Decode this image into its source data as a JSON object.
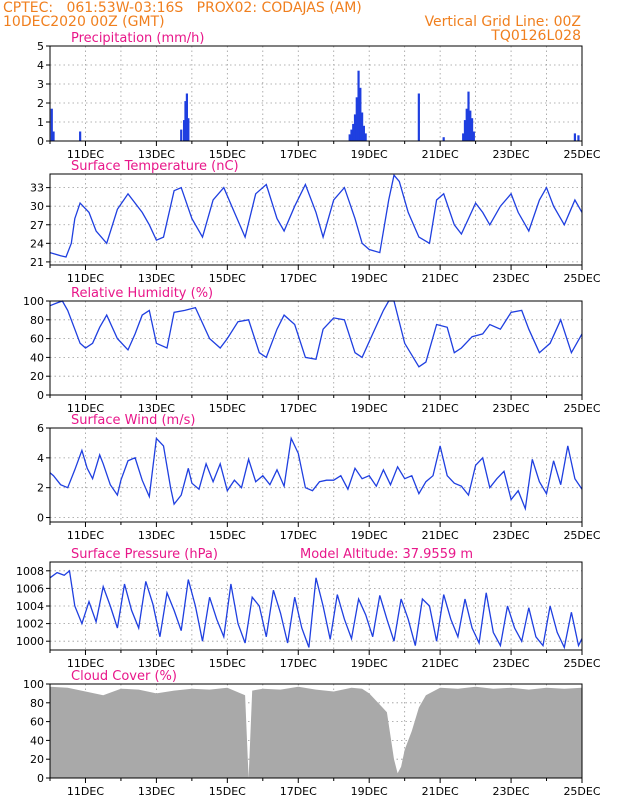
{
  "header": {
    "left_line1": "CPTEC:   061:53W-03:16S   PROX02: CODAJAS (AM)",
    "left_line2": "10DEC2020 00Z (GMT)",
    "right_line2": "Vertical Grid Line: 00Z",
    "right_line3": "TQ0126L028"
  },
  "colors": {
    "header": "#f07f1e",
    "title": "#e8178a",
    "line": "#1f3fe0",
    "cloud": "#a9a9a9",
    "grid": "#9a9a9a"
  },
  "x_axis": {
    "labels": [
      "11DEC",
      "13DEC",
      "15DEC",
      "17DEC",
      "19DEC",
      "21DEC",
      "23DEC",
      "25DEC"
    ],
    "label_days": [
      1,
      3,
      5,
      7,
      9,
      11,
      13,
      15
    ],
    "range": [
      0,
      15
    ]
  },
  "chart_data": [
    {
      "type": "bar",
      "title": "Precipitation (mm/h)",
      "ylim": [
        0,
        5
      ],
      "yticks": [
        0,
        1,
        2,
        3,
        4,
        5
      ],
      "bars": [
        [
          0.05,
          1.7
        ],
        [
          0.1,
          0.5
        ],
        [
          0.85,
          0.5
        ],
        [
          3.7,
          0.6
        ],
        [
          3.78,
          1.1
        ],
        [
          3.82,
          2.1
        ],
        [
          3.86,
          2.5
        ],
        [
          3.9,
          1.2
        ],
        [
          8.45,
          0.35
        ],
        [
          8.5,
          0.6
        ],
        [
          8.55,
          0.9
        ],
        [
          8.6,
          1.4
        ],
        [
          8.65,
          2.3
        ],
        [
          8.7,
          3.7
        ],
        [
          8.75,
          2.8
        ],
        [
          8.8,
          1.5
        ],
        [
          8.85,
          0.8
        ],
        [
          8.9,
          0.4
        ],
        [
          10.4,
          2.5
        ],
        [
          11.1,
          0.2
        ],
        [
          11.65,
          0.4
        ],
        [
          11.7,
          1.1
        ],
        [
          11.75,
          1.7
        ],
        [
          11.8,
          2.6
        ],
        [
          11.85,
          1.6
        ],
        [
          11.9,
          1.2
        ],
        [
          11.95,
          0.5
        ],
        [
          14.8,
          0.4
        ],
        [
          14.9,
          0.3
        ]
      ]
    },
    {
      "type": "line",
      "title": "Surface Temperature (nC)",
      "ylim": [
        20.5,
        35.2
      ],
      "yticks": [
        21,
        24,
        27,
        30,
        33
      ],
      "x": [
        0,
        0.3,
        0.45,
        0.6,
        0.7,
        0.85,
        1.1,
        1.3,
        1.6,
        1.9,
        2.2,
        2.6,
        2.8,
        3.0,
        3.2,
        3.5,
        3.7,
        4.0,
        4.3,
        4.6,
        4.9,
        5.2,
        5.5,
        5.8,
        6.1,
        6.4,
        6.6,
        6.9,
        7.2,
        7.5,
        7.7,
        8.0,
        8.3,
        8.6,
        8.8,
        9.0,
        9.3,
        9.55,
        9.7,
        9.85,
        10.1,
        10.4,
        10.7,
        10.9,
        11.1,
        11.4,
        11.6,
        11.8,
        12.0,
        12.2,
        12.4,
        12.7,
        13.0,
        13.2,
        13.5,
        13.8,
        14.0,
        14.2,
        14.5,
        14.8,
        15.0
      ],
      "y": [
        22.5,
        22,
        21.8,
        24,
        28,
        30.5,
        29,
        26,
        24,
        29.5,
        32,
        29,
        27,
        24.5,
        25,
        32.5,
        33,
        28,
        25,
        31,
        33,
        29,
        25,
        32,
        33.5,
        28,
        26,
        30,
        33.5,
        29,
        25,
        31,
        33,
        28,
        24,
        23,
        22.5,
        31,
        35,
        34,
        29,
        25,
        24,
        31,
        32,
        27,
        25.5,
        28,
        30.5,
        29,
        27,
        30,
        32,
        29,
        26,
        31,
        33,
        30,
        27,
        31,
        29
      ]
    },
    {
      "type": "line",
      "title": "Relative Humidity (%)",
      "ylim": [
        0,
        100
      ],
      "yticks": [
        0,
        20,
        40,
        60,
        80,
        100
      ],
      "x": [
        0,
        0.2,
        0.35,
        0.5,
        0.7,
        0.85,
        1.0,
        1.2,
        1.4,
        1.6,
        1.9,
        2.2,
        2.4,
        2.6,
        2.8,
        3.0,
        3.3,
        3.5,
        3.8,
        4.1,
        4.5,
        4.8,
        5.0,
        5.3,
        5.6,
        5.9,
        6.1,
        6.4,
        6.6,
        6.9,
        7.2,
        7.5,
        7.7,
        8.0,
        8.3,
        8.6,
        8.8,
        9.1,
        9.4,
        9.55,
        9.7,
        10.0,
        10.4,
        10.6,
        10.9,
        11.2,
        11.4,
        11.6,
        11.9,
        12.2,
        12.4,
        12.7,
        13.0,
        13.3,
        13.5,
        13.8,
        14.1,
        14.4,
        14.7,
        15.0
      ],
      "y": [
        95,
        98,
        100,
        90,
        70,
        55,
        50,
        55,
        72,
        85,
        60,
        48,
        65,
        85,
        90,
        55,
        50,
        88,
        90,
        93,
        60,
        50,
        60,
        78,
        80,
        45,
        40,
        70,
        85,
        75,
        40,
        38,
        70,
        82,
        80,
        45,
        40,
        65,
        90,
        100,
        100,
        55,
        30,
        35,
        75,
        72,
        45,
        50,
        62,
        65,
        75,
        70,
        88,
        90,
        70,
        45,
        55,
        80,
        45,
        65
      ]
    },
    {
      "type": "line",
      "title": "Surface Wind (m/s)",
      "ylim": [
        -0.3,
        6
      ],
      "yticks": [
        0,
        2,
        4,
        6
      ],
      "x": [
        0,
        0.1,
        0.3,
        0.5,
        0.7,
        0.9,
        1.05,
        1.2,
        1.4,
        1.5,
        1.7,
        1.9,
        2.0,
        2.2,
        2.4,
        2.6,
        2.8,
        3.0,
        3.2,
        3.4,
        3.5,
        3.7,
        3.9,
        4.0,
        4.2,
        4.4,
        4.6,
        4.8,
        5.0,
        5.2,
        5.4,
        5.6,
        5.8,
        6.0,
        6.2,
        6.4,
        6.6,
        6.8,
        7.0,
        7.2,
        7.4,
        7.6,
        7.8,
        8.0,
        8.2,
        8.4,
        8.6,
        8.8,
        9.0,
        9.2,
        9.4,
        9.6,
        9.8,
        10.0,
        10.2,
        10.4,
        10.6,
        10.8,
        11.0,
        11.2,
        11.4,
        11.6,
        11.8,
        12.0,
        12.2,
        12.4,
        12.6,
        12.8,
        13.0,
        13.2,
        13.4,
        13.6,
        13.8,
        14.0,
        14.2,
        14.4,
        14.6,
        14.8,
        15.0
      ],
      "y": [
        3,
        2.8,
        2.2,
        2,
        3.2,
        4.5,
        3.3,
        2.6,
        4.2,
        3.6,
        2.2,
        1.5,
        2.5,
        3.8,
        4,
        2.5,
        1.4,
        5.3,
        4.8,
        2,
        0.9,
        1.5,
        3.3,
        2.3,
        1.9,
        3.6,
        2.4,
        3.6,
        1.8,
        2.5,
        2,
        3.9,
        2.4,
        2.8,
        2.2,
        3.2,
        2.1,
        5.3,
        4.3,
        2,
        1.8,
        2.4,
        2.5,
        2.5,
        2.8,
        1.9,
        3.3,
        2.6,
        2.8,
        2.1,
        3.2,
        2.2,
        3.4,
        2.6,
        2.8,
        1.6,
        2.4,
        2.8,
        4.8,
        2.8,
        2.3,
        2.1,
        1.5,
        3.5,
        4,
        2,
        2.6,
        3.1,
        1.2,
        1.8,
        0.6,
        3.9,
        2.4,
        1.6,
        3.8,
        2.2,
        4.8,
        2.6,
        1.9
      ]
    },
    {
      "type": "line",
      "title": "Surface Pressure (hPa)",
      "annotation": "Model Altitude: 37.9559  m",
      "ylim": [
        999,
        1009
      ],
      "yticks": [
        1000,
        1002,
        1004,
        1006,
        1008
      ],
      "x": [
        0,
        0.2,
        0.4,
        0.55,
        0.7,
        0.9,
        1.1,
        1.3,
        1.5,
        1.7,
        1.9,
        2.1,
        2.3,
        2.5,
        2.7,
        2.9,
        3.1,
        3.3,
        3.5,
        3.7,
        3.9,
        4.1,
        4.3,
        4.5,
        4.7,
        4.9,
        5.1,
        5.3,
        5.5,
        5.7,
        5.9,
        6.1,
        6.3,
        6.5,
        6.7,
        6.9,
        7.1,
        7.3,
        7.5,
        7.7,
        7.9,
        8.1,
        8.3,
        8.5,
        8.7,
        8.9,
        9.1,
        9.3,
        9.5,
        9.7,
        9.9,
        10.1,
        10.3,
        10.5,
        10.7,
        10.9,
        11.1,
        11.3,
        11.5,
        11.7,
        11.9,
        12.1,
        12.3,
        12.5,
        12.7,
        12.9,
        13.1,
        13.3,
        13.5,
        13.7,
        13.9,
        14.1,
        14.3,
        14.5,
        14.7,
        14.9,
        15.0
      ],
      "y": [
        1007.2,
        1007.8,
        1007.5,
        1008,
        1004,
        1002,
        1004.5,
        1002.2,
        1006.2,
        1004,
        1001.5,
        1006.5,
        1003.5,
        1001.5,
        1006.8,
        1004.2,
        1000.5,
        1005.5,
        1003.5,
        1001.2,
        1007,
        1004,
        1000,
        1005,
        1002.5,
        1000.5,
        1006.5,
        1002,
        999.8,
        1005,
        1004,
        1000.5,
        1005.8,
        1003.2,
        999.8,
        1005,
        1001.5,
        999.3,
        1007.2,
        1004,
        1000.2,
        1005.3,
        1002.5,
        1000.3,
        1004.8,
        1003,
        1000.5,
        1005.2,
        1002.5,
        1000,
        1004.8,
        1002.5,
        999.5,
        1004.8,
        1004,
        1000,
        1005.3,
        1002.5,
        1000.5,
        1004.8,
        1001.5,
        999.8,
        1005.5,
        1001,
        999.5,
        1004,
        1001.5,
        1000,
        1003.8,
        1000.5,
        999.5,
        1004,
        1001,
        999.3,
        1003.3,
        999.5,
        1000.3
      ]
    },
    {
      "type": "area",
      "title": "Cloud Cover (%)",
      "ylim": [
        0,
        100
      ],
      "yticks": [
        0,
        20,
        40,
        60,
        80,
        100
      ],
      "x": [
        0,
        0.5,
        1.0,
        1.5,
        2.0,
        2.5,
        3.0,
        3.5,
        4.0,
        4.5,
        5.0,
        5.5,
        5.6,
        5.7,
        6.0,
        6.5,
        7.0,
        7.5,
        8.0,
        8.5,
        8.8,
        9.0,
        9.2,
        9.5,
        9.7,
        9.8,
        9.9,
        10.0,
        10.2,
        10.4,
        10.6,
        10.8,
        11.0,
        11.5,
        12.0,
        12.5,
        13.0,
        13.5,
        14.0,
        14.5,
        15.0
      ],
      "y": [
        97,
        96,
        92,
        88,
        95,
        94,
        90,
        93,
        95,
        94,
        96,
        88,
        0,
        93,
        95,
        94,
        97,
        94,
        92,
        96,
        95,
        90,
        82,
        70,
        20,
        5,
        12,
        30,
        50,
        75,
        88,
        92,
        96,
        95,
        97,
        95,
        96,
        94,
        96,
        95,
        96
      ]
    }
  ]
}
